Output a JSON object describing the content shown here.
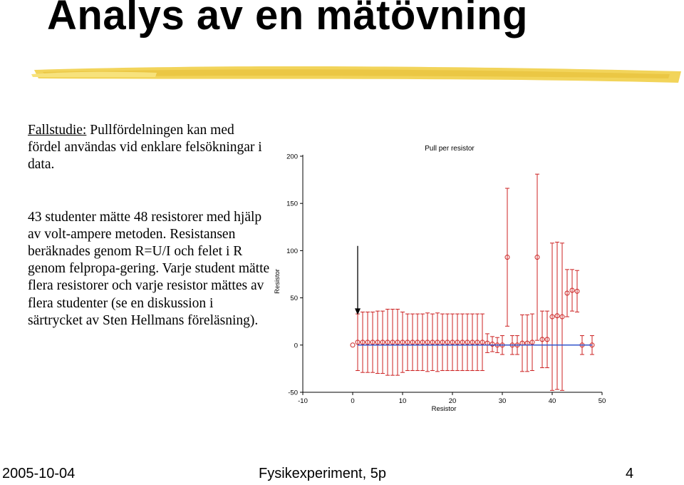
{
  "slide": {
    "title": "Analys av en mätövning",
    "case_label": "Fallstudie:",
    "case_text": " Pullfördelningen kan med fördel användas vid enklare felsökningar i data.",
    "paragraph": "43 studenter mätte 48 resistorer med hjälp av volt-ampere metoden. Resistansen beräknades genom R=U/I och felet i R genom felpropa-gering. Varje student mätte flera resistorer och varje resistor mättes av flera studenter (se en diskussion i särtrycket av Sten Hellmans föreläsning).",
    "footer_date": "2005-10-04",
    "footer_course": "Fysikexperiment, 5p",
    "footer_page": "4"
  },
  "chart_data": {
    "type": "scatter",
    "title": "Pull per resistor",
    "xlabel": "Resistor",
    "ylabel": "Resistor",
    "xlim": [
      -10,
      50
    ],
    "ylim": [
      -50,
      200
    ],
    "xticks": [
      "-10",
      "0",
      "10",
      "20",
      "30",
      "40",
      "50"
    ],
    "yticks": [
      "200",
      "150",
      "100",
      "50",
      "0",
      "-50"
    ],
    "grid": false,
    "colors": {
      "points": "#cc2222",
      "reference_line": "#3355cc",
      "arrow": "#000000"
    },
    "reference_line": {
      "y": 0,
      "x_from": 1,
      "x_to": 48
    },
    "arrow": {
      "x": 1,
      "y_from": 105,
      "y_to": 32
    },
    "series": [
      {
        "x": [
          0,
          1,
          2,
          3,
          4,
          5,
          6,
          7,
          8,
          9,
          10,
          11,
          12,
          13,
          14,
          15,
          16,
          17,
          18,
          19,
          20,
          21,
          22,
          23,
          24,
          25,
          26,
          27,
          28,
          29,
          30,
          31,
          32,
          33,
          34,
          35,
          36,
          37,
          38,
          39,
          40,
          41,
          42,
          43,
          44,
          45,
          46,
          48
        ],
        "y": [
          0,
          3,
          3,
          3,
          3,
          3,
          3,
          3,
          3,
          3,
          3,
          3,
          3,
          3,
          3,
          3,
          3,
          3,
          3,
          3,
          3,
          3,
          3,
          3,
          3,
          3,
          3,
          2,
          1,
          0,
          0,
          93,
          0,
          0,
          2,
          2,
          3,
          93,
          6,
          6,
          30,
          31,
          30,
          55,
          58,
          57,
          0,
          0
        ],
        "err": [
          0,
          30,
          32,
          32,
          32,
          33,
          33,
          35,
          35,
          35,
          32,
          30,
          30,
          30,
          30,
          31,
          30,
          31,
          30,
          30,
          30,
          30,
          30,
          30,
          30,
          30,
          30,
          10,
          8,
          8,
          10,
          73,
          10,
          10,
          30,
          30,
          30,
          88,
          30,
          30,
          78,
          78,
          78,
          25,
          22,
          22,
          10,
          10
        ]
      }
    ]
  }
}
